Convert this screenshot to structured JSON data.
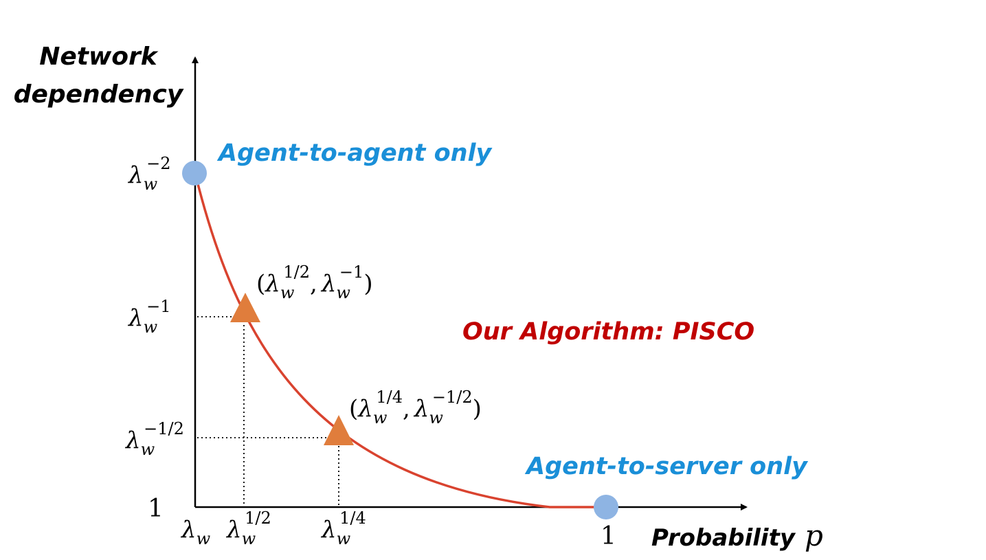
{
  "axes": {
    "y_title_line1": "Network",
    "y_title_line2": "dependency",
    "x_title": "Probability",
    "x_var": "p"
  },
  "x_ticks": {
    "lambda": "λ",
    "sub": "w",
    "half_exp": "1/2",
    "quarter_exp": "1/4",
    "one": "1"
  },
  "y_ticks": {
    "lambda": "λ",
    "sub": "w",
    "top_exp": "−2",
    "mid_exp": "−1",
    "low_exp": "−1/2",
    "one": "1"
  },
  "points": {
    "upper_open": "(",
    "upper_first_exp": "1/2",
    "upper_sep": ",",
    "upper_second_exp": "−1",
    "upper_close": ")",
    "lower_open": "(",
    "lower_first_exp": "1/4",
    "lower_sep": ",",
    "lower_second_exp": "−1/2",
    "lower_close": ")"
  },
  "labels": {
    "agent_to_agent": "Agent-to-agent only",
    "agent_to_server": "Agent-to-server only",
    "algorithm": "Our Algorithm: PISCO"
  },
  "colors": {
    "curve": "#d9432f",
    "endpoint": "#8eb4e3",
    "triangle": "#e07d3c",
    "endpoint_text": "#1a8fd8",
    "algorithm_text": "#c00000"
  },
  "icons": {
    "endpoint_marker": "circle-icon",
    "point_marker": "triangle-icon"
  }
}
